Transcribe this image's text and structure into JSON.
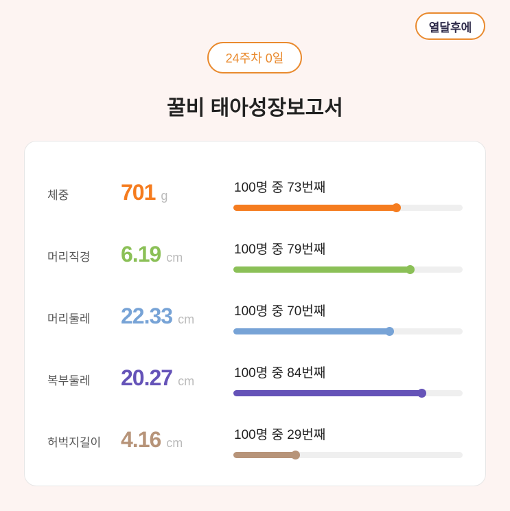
{
  "header": {
    "later_button": "열달후에",
    "week_badge": "24주차 0일",
    "title": "꿀비 태아성장보고서"
  },
  "measurements": [
    {
      "label": "체중",
      "value": "701",
      "unit": "g",
      "rank_text": "100명 중 73번째",
      "progress": 0.71,
      "color": "#f57c1f"
    },
    {
      "label": "머리직경",
      "value": "6.19",
      "unit": "cm",
      "rank_text": "100명 중 79번째",
      "progress": 0.77,
      "color": "#8bc057"
    },
    {
      "label": "머리둘레",
      "value": "22.33",
      "unit": "cm",
      "rank_text": "100명 중 70번째",
      "progress": 0.68,
      "color": "#77a3d6"
    },
    {
      "label": "복부둘레",
      "value": "20.27",
      "unit": "cm",
      "rank_text": "100명 중 84번째",
      "progress": 0.82,
      "color": "#6553b8"
    },
    {
      "label": "허벅지길이",
      "value": "4.16",
      "unit": "cm",
      "rank_text": "100명 중 29번째",
      "progress": 0.27,
      "color": "#b79479"
    }
  ]
}
